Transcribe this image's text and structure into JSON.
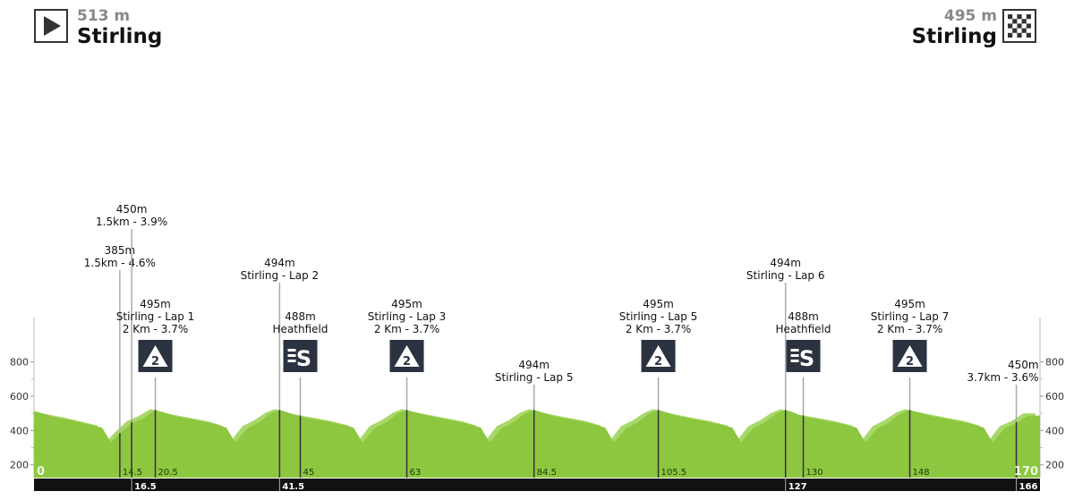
{
  "start": {
    "altitude": "513 m",
    "city": "Stirling",
    "icon": "play-start-icon"
  },
  "finish": {
    "altitude": "495 m",
    "city": "Stirling",
    "icon": "checkered-flag-icon"
  },
  "colors": {
    "profile": "#8dc63f",
    "profile_light": "#a9d86a",
    "bar": "#111111",
    "badge": "#2b3240"
  },
  "chart_data": {
    "type": "area",
    "xlim": [
      0,
      170
    ],
    "ylim": [
      0,
      1000
    ],
    "y_ticks": [
      200,
      400,
      600,
      800
    ],
    "y_ticks_minor": [
      300,
      500,
      700
    ],
    "profile": [
      [
        0,
        513
      ],
      [
        1,
        505
      ],
      [
        3,
        490
      ],
      [
        6,
        470
      ],
      [
        9,
        445
      ],
      [
        11.5,
        425
      ],
      [
        13,
        330
      ],
      [
        14.5,
        385
      ],
      [
        16.5,
        450
      ],
      [
        18.5,
        480
      ],
      [
        20.5,
        520
      ],
      [
        21.5,
        510
      ],
      [
        24,
        490
      ],
      [
        27,
        470
      ],
      [
        30,
        450
      ],
      [
        32.5,
        425
      ],
      [
        34,
        330
      ],
      [
        36,
        420
      ],
      [
        38,
        455
      ],
      [
        40,
        500
      ],
      [
        41.5,
        520
      ],
      [
        42.5,
        510
      ],
      [
        45,
        488
      ],
      [
        48,
        470
      ],
      [
        51,
        450
      ],
      [
        54,
        425
      ],
      [
        55.5,
        330
      ],
      [
        57.5,
        420
      ],
      [
        59.5,
        455
      ],
      [
        61.5,
        500
      ],
      [
        63,
        520
      ],
      [
        64,
        510
      ],
      [
        67,
        490
      ],
      [
        70,
        470
      ],
      [
        73,
        450
      ],
      [
        75.5,
        425
      ],
      [
        77,
        330
      ],
      [
        79,
        420
      ],
      [
        81,
        455
      ],
      [
        83,
        500
      ],
      [
        84.5,
        520
      ],
      [
        85.5,
        510
      ],
      [
        88,
        490
      ],
      [
        91,
        470
      ],
      [
        94,
        450
      ],
      [
        96.5,
        425
      ],
      [
        98,
        330
      ],
      [
        100,
        420
      ],
      [
        102,
        455
      ],
      [
        104,
        500
      ],
      [
        105.5,
        520
      ],
      [
        106.5,
        510
      ],
      [
        109,
        490
      ],
      [
        112,
        470
      ],
      [
        115,
        450
      ],
      [
        118,
        425
      ],
      [
        119.5,
        330
      ],
      [
        121.5,
        420
      ],
      [
        123.5,
        455
      ],
      [
        125.5,
        500
      ],
      [
        127,
        520
      ],
      [
        128,
        510
      ],
      [
        130,
        488
      ],
      [
        133,
        470
      ],
      [
        136,
        450
      ],
      [
        139,
        425
      ],
      [
        140.5,
        330
      ],
      [
        142.5,
        420
      ],
      [
        144.5,
        455
      ],
      [
        146.5,
        500
      ],
      [
        148,
        520
      ],
      [
        149,
        510
      ],
      [
        152,
        490
      ],
      [
        155,
        470
      ],
      [
        158,
        450
      ],
      [
        160.5,
        425
      ],
      [
        162,
        330
      ],
      [
        164,
        420
      ],
      [
        166,
        450
      ],
      [
        168,
        495
      ],
      [
        170,
        495
      ]
    ],
    "km_labels_profile": [
      "0",
      "14.5",
      "20.5",
      "45",
      "63",
      "84.5",
      "105.5",
      "130",
      "148",
      "170"
    ],
    "km_labels_bar": [
      "16.5",
      "41.5",
      "127",
      "166"
    ],
    "annotations": [
      {
        "km": 14.5,
        "elev": 385,
        "lines": [
          "385m",
          "1.5km - 4.6%"
        ],
        "icon": ""
      },
      {
        "km": 16.5,
        "elev": 450,
        "lines": [
          "450m",
          "1.5km - 3.9%"
        ],
        "icon": ""
      },
      {
        "km": 20.5,
        "elev": 495,
        "lines": [
          "495m",
          "Stirling - Lap 1",
          "2 Km - 3.7%"
        ],
        "icon": "kom-cat2-icon",
        "badge": "2"
      },
      {
        "km": 41.5,
        "elev": 494,
        "lines": [
          "494m",
          "Stirling - Lap 2"
        ],
        "icon": ""
      },
      {
        "km": 45,
        "elev": 488,
        "lines": [
          "488m",
          "Heathfield"
        ],
        "icon": "sprint-icon",
        "badge": "S"
      },
      {
        "km": 63,
        "elev": 495,
        "lines": [
          "495m",
          "Stirling - Lap 3",
          "2 Km - 3.7%"
        ],
        "icon": "kom-cat2-icon",
        "badge": "2"
      },
      {
        "km": 84.5,
        "elev": 494,
        "lines": [
          "494m",
          "Stirling - Lap 5"
        ],
        "icon": ""
      },
      {
        "km": 105.5,
        "elev": 495,
        "lines": [
          "495m",
          "Stirling - Lap 5",
          "2 Km - 3.7%"
        ],
        "icon": "kom-cat2-icon",
        "badge": "2"
      },
      {
        "km": 127,
        "elev": 494,
        "lines": [
          "494m",
          "Stirling - Lap 6"
        ],
        "icon": ""
      },
      {
        "km": 130,
        "elev": 488,
        "lines": [
          "488m",
          "Heathfield"
        ],
        "icon": "sprint-icon",
        "badge": "S"
      },
      {
        "km": 148,
        "elev": 495,
        "lines": [
          "495m",
          "Stirling - Lap 7",
          "2 Km - 3.7%"
        ],
        "icon": "kom-cat2-icon",
        "badge": "2"
      },
      {
        "km": 166,
        "elev": 450,
        "lines": [
          "450m",
          "3.7km - 3.6%"
        ],
        "icon": ""
      }
    ]
  }
}
